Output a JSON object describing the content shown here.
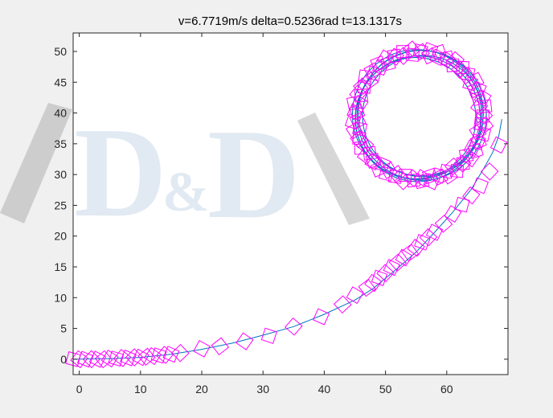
{
  "title": "v=6.7719m/s delta=0.5236rad t=13.1317s",
  "watermark": {
    "text_left": "D",
    "amp": "&",
    "text_right": "D"
  },
  "colors": {
    "trajectory_line": "#0072bd",
    "markers": "#ff00ff",
    "axes_background": "#ffffff",
    "figure_background": "#f0f0f0"
  },
  "chart_data": {
    "type": "line",
    "title": "v=6.7719m/s delta=0.5236rad t=13.1317s",
    "xlabel": "",
    "ylabel": "",
    "xlim": [
      -1,
      70
    ],
    "ylim": [
      -2.5,
      53
    ],
    "xticks": [
      0,
      10,
      20,
      30,
      40,
      50,
      60
    ],
    "yticks": [
      0,
      5,
      10,
      15,
      20,
      25,
      30,
      35,
      40,
      45,
      50
    ],
    "grid": false,
    "series": [
      {
        "style": "line",
        "color": "#0072bd",
        "description_points": "approach curve",
        "x": [
          -1,
          5,
          10,
          15,
          20,
          25,
          30,
          35,
          40,
          45,
          48,
          52,
          55,
          58,
          61,
          64,
          66,
          67.5,
          68.5,
          69
        ],
        "y": [
          0,
          0.1,
          0.3,
          0.8,
          1.6,
          2.6,
          3.9,
          5.3,
          7.3,
          9.6,
          11.5,
          14.8,
          17.4,
          20.6,
          23.9,
          27.6,
          30.9,
          33.6,
          36.3,
          39.0
        ]
      },
      {
        "style": "circle",
        "color": "#0072bd",
        "center": [
          55.5,
          39.5
        ],
        "radius": 10.2,
        "loops": 6
      },
      {
        "style": "diamond-markers",
        "color": "#ff00ff",
        "x": [
          -1,
          0,
          1,
          2,
          3,
          4,
          5,
          6,
          7,
          8,
          9,
          10,
          11,
          12,
          13,
          14,
          15,
          16.5,
          20,
          23,
          27,
          31,
          35,
          39.5,
          43,
          45,
          47,
          48,
          49,
          50,
          51,
          52,
          53,
          54,
          55,
          56,
          57,
          58,
          59.5,
          61,
          62.5,
          64,
          65.5,
          67,
          68.5
        ],
        "y": [
          0,
          0,
          0,
          0,
          0,
          0,
          0.1,
          0.1,
          0.2,
          0.2,
          0.3,
          0.3,
          0.4,
          0.5,
          0.6,
          0.7,
          0.8,
          1.0,
          1.7,
          2.1,
          2.9,
          3.8,
          5.3,
          6.9,
          8.9,
          10.4,
          11.6,
          12.4,
          13.2,
          14.0,
          14.9,
          15.7,
          16.5,
          17.3,
          18.1,
          19.0,
          19.8,
          20.6,
          22.0,
          23.6,
          25.1,
          26.6,
          28.2,
          30.5,
          34.8
        ]
      },
      {
        "style": "diamond-markers-circle",
        "color": "#ff00ff",
        "center": [
          55.5,
          39.5
        ],
        "radius": 10.4,
        "count": 90
      }
    ]
  }
}
